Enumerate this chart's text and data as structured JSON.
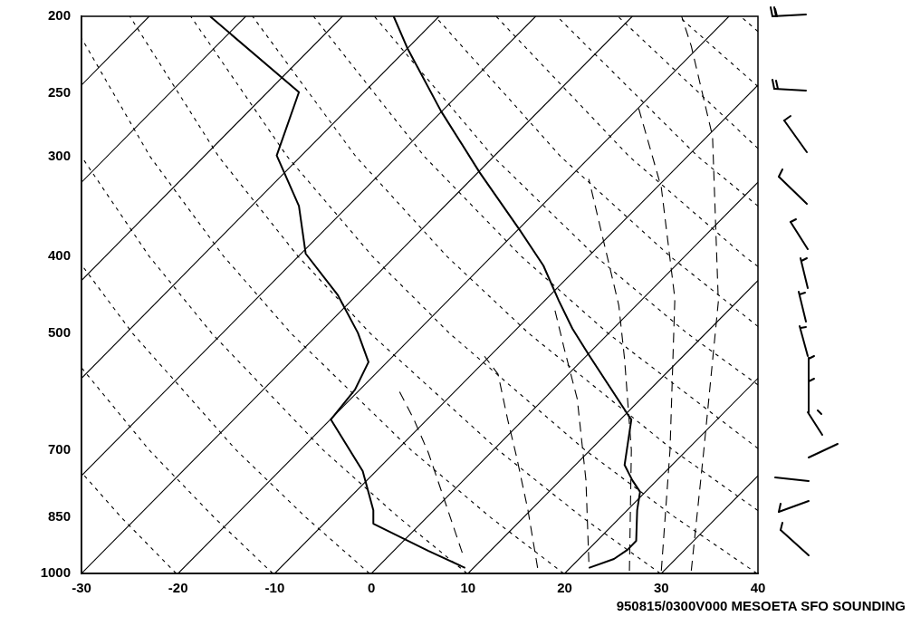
{
  "chart_data": {
    "type": "line",
    "annotations": [
      "950815/0300V000 MESOETA SFO SOUNDING"
    ],
    "xlim": [
      -30,
      40
    ],
    "xticks": [
      -30,
      -20,
      -10,
      0,
      10,
      20,
      30,
      40
    ],
    "ylim": [
      1000,
      200
    ],
    "yticks": [
      200,
      250,
      300,
      400,
      500,
      700,
      850,
      1000
    ],
    "log": "y",
    "grid": false,
    "legend": false,
    "marker": "none",
    "series": [
      {
        "color": "#000000",
        "line_style": "solid",
        "x": [
          -30,
          -23
        ],
        "values": [
          244,
          200
        ]
      },
      {
        "color": "#000000",
        "line_style": "solid",
        "x": [
          -30,
          -13
        ],
        "values": [
          323,
          200
        ]
      },
      {
        "color": "#000000",
        "line_style": "solid",
        "x": [
          -30,
          -3
        ],
        "values": [
          429,
          200
        ]
      },
      {
        "color": "#000000",
        "line_style": "solid",
        "x": [
          -30,
          7
        ],
        "values": [
          569,
          200
        ]
      },
      {
        "color": "#000000",
        "line_style": "solid",
        "x": [
          -30,
          17
        ],
        "values": [
          754,
          200
        ]
      },
      {
        "color": "#000000",
        "line_style": "solid",
        "x": [
          -30,
          27
        ],
        "values": [
          1000,
          200
        ]
      },
      {
        "color": "#000000",
        "line_style": "solid",
        "x": [
          -20,
          37
        ],
        "values": [
          1000,
          200
        ]
      },
      {
        "color": "#000000",
        "line_style": "solid",
        "x": [
          -10,
          40
        ],
        "values": [
          1000,
          244
        ]
      },
      {
        "color": "#000000",
        "line_style": "solid",
        "x": [
          0,
          40
        ],
        "values": [
          1000,
          323
        ]
      },
      {
        "color": "#000000",
        "line_style": "solid",
        "x": [
          10,
          40
        ],
        "values": [
          1000,
          429
        ]
      },
      {
        "color": "#000000",
        "line_style": "solid",
        "x": [
          20,
          40
        ],
        "values": [
          1000,
          569
        ]
      },
      {
        "color": "#000000",
        "line_style": "solid",
        "x": [
          30,
          40
        ],
        "values": [
          1000,
          754
        ]
      },
      {
        "color": "#000000",
        "line_style": "dotted",
        "x": [
          -20.2,
          -25.9,
          -30
        ],
        "values": [
          1000,
          850,
          747
        ]
      },
      {
        "color": "#000000",
        "line_style": "dotted",
        "x": [
          -10.2,
          -16.3,
          -23.0,
          -30
        ],
        "values": [
          1000,
          850,
          700,
          552
        ]
      },
      {
        "color": "#000000",
        "line_style": "dotted",
        "x": [
          -0.2,
          -6.8,
          -14.0,
          -24.7,
          -30
        ],
        "values": [
          1000,
          850,
          700,
          500,
          410
        ]
      },
      {
        "color": "#000000",
        "line_style": "dotted",
        "x": [
          9.9,
          2.8,
          -5.0,
          -16.5,
          -23.0,
          -30
        ],
        "values": [
          1000,
          850,
          700,
          500,
          400,
          300
        ]
      },
      {
        "color": "#000000",
        "line_style": "dotted",
        "x": [
          19.9,
          12.3,
          4.1,
          -8.3,
          -15.3,
          -22.9,
          -30
        ],
        "values": [
          1000,
          850,
          700,
          500,
          400,
          300,
          213
        ]
      },
      {
        "color": "#000000",
        "line_style": "dotted",
        "x": [
          29.9,
          21.8,
          13.1,
          -0.1,
          -7.6,
          -15.8,
          -25.0
        ],
        "values": [
          1000,
          850,
          700,
          500,
          400,
          300,
          200
        ]
      },
      {
        "color": "#000000",
        "line_style": "dotted",
        "x": [
          39.9,
          31.4,
          22.1,
          8.1,
          0.1,
          -8.7,
          -18.7
        ],
        "values": [
          1000,
          850,
          700,
          500,
          400,
          300,
          200
        ]
      },
      {
        "color": "#000000",
        "line_style": "dotted",
        "x": [
          40,
          31.2,
          16.3,
          7.8,
          -1.6,
          -12.3
        ],
        "values": [
          834,
          700,
          500,
          400,
          300,
          200
        ]
      },
      {
        "color": "#000000",
        "line_style": "dotted",
        "x": [
          40,
          24.5,
          15.5,
          5.5,
          -6.0
        ],
        "values": [
          697,
          500,
          400,
          300,
          200
        ]
      },
      {
        "color": "#000000",
        "line_style": "dotted",
        "x": [
          40,
          32.7,
          23.2,
          12.6,
          0.3
        ],
        "values": [
          580,
          500,
          400,
          300,
          200
        ]
      },
      {
        "color": "#000000",
        "line_style": "dotted",
        "x": [
          40,
          30.9,
          19.6,
          6.6
        ],
        "values": [
          490,
          400,
          300,
          200
        ]
      },
      {
        "color": "#000000",
        "line_style": "dotted",
        "x": [
          40,
          38.6,
          26.7,
          12.9
        ],
        "values": [
          412,
          400,
          300,
          200
        ]
      },
      {
        "color": "#000000",
        "line_style": "dotted",
        "x": [
          40,
          33.8,
          19.2
        ],
        "values": [
          346,
          300,
          200
        ]
      },
      {
        "color": "#000000",
        "line_style": "dotted",
        "x": [
          40,
          25.5
        ],
        "values": [
          293,
          200
        ]
      },
      {
        "color": "#000000",
        "line_style": "dotted",
        "x": [
          40,
          31.8
        ],
        "values": [
          245,
          200
        ]
      },
      {
        "color": "#000000",
        "line_style": "dotted",
        "x": [
          40,
          38.2
        ],
        "values": [
          209,
          200
        ]
      },
      {
        "color": "#000000",
        "line_style": "dashed",
        "x": [
          9.4,
          7.5,
          5.9,
          4.4,
          2.8
        ],
        "values": [
          942,
          805,
          706,
          641,
          588
        ]
      },
      {
        "color": "#000000",
        "line_style": "dashed",
        "x": [
          17.2,
          16.2,
          15.0,
          14.1,
          13.1,
          11.7
        ],
        "values": [
          984,
          833,
          712,
          641,
          562,
          534
        ]
      },
      {
        "color": "#000000",
        "line_style": "dashed",
        "x": [
          22.5,
          22.2,
          21.3,
          20.0,
          19.0
        ],
        "values": [
          967,
          764,
          604,
          525,
          468
        ]
      },
      {
        "color": "#000000",
        "line_style": "dashed",
        "x": [
          26.7,
          26.9,
          26.2,
          25.6,
          22.5
        ],
        "values": [
          992,
          700,
          539,
          461,
          320
        ]
      },
      {
        "color": "#000000",
        "line_style": "dashed",
        "x": [
          30.0,
          30.9,
          31.4,
          30.0,
          27.5
        ],
        "values": [
          992,
          700,
          452,
          328,
          257
        ]
      },
      {
        "color": "#000000",
        "line_style": "dashed",
        "x": [
          33.1,
          34.4,
          35.9,
          35.3,
          33.1,
          32.1
        ],
        "values": [
          992,
          700,
          456,
          283,
          218,
          200
        ]
      },
      {
        "color": "#000000",
        "line_style": "solid",
        "x": [
          -16.7,
          -7.5,
          -9.8,
          -7.5,
          -6.8,
          -3.5,
          -1.4,
          -0.3,
          -1.7,
          -4.2,
          -0.9,
          0.2,
          0.2,
          5.9,
          9.7
        ],
        "values": [
          200,
          249,
          299,
          346,
          397,
          447,
          499,
          543,
          588,
          641,
          744,
          833,
          866,
          937,
          984
        ]
      },
      {
        "color": "#000000",
        "line_style": "solid",
        "x": [
          2.3,
          3.7,
          7.2,
          11.2,
          15.3,
          17.8,
          19.4,
          20.8,
          22.5,
          26.5,
          26.9,
          26.2,
          27.0,
          27.8,
          27.5,
          27.4,
          26.5,
          25.1,
          22.5
        ],
        "values": [
          200,
          219,
          263,
          314,
          370,
          411,
          455,
          493,
          532,
          631,
          641,
          731,
          764,
          790,
          833,
          910,
          934,
          959,
          984
        ]
      }
    ]
  }
}
